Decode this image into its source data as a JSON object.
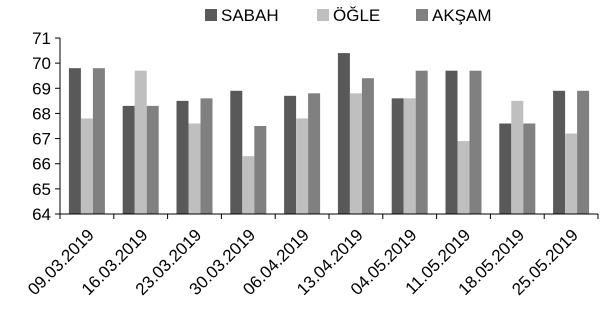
{
  "chart_data": {
    "type": "bar",
    "categories": [
      "09.03.2019",
      "16.03.2019",
      "23.03.2019",
      "30.03.2019",
      "06.04.2019",
      "13.04.2019",
      "04.05.2019",
      "11.05.2019",
      "18.05.2019",
      "25.05.2019"
    ],
    "series": [
      {
        "name": "SABAH",
        "color": "#595959",
        "values": [
          69.8,
          68.3,
          68.5,
          68.9,
          68.7,
          70.4,
          68.6,
          69.7,
          67.6,
          68.9
        ]
      },
      {
        "name": "ÖĞLE",
        "color": "#bfbfbf",
        "values": [
          67.8,
          69.7,
          67.6,
          66.3,
          67.8,
          68.8,
          68.6,
          66.9,
          68.5,
          67.2
        ]
      },
      {
        "name": "AKŞAM",
        "color": "#808080",
        "values": [
          69.8,
          68.3,
          68.6,
          67.5,
          68.8,
          69.4,
          69.7,
          69.7,
          67.6,
          68.9
        ]
      }
    ],
    "ylim": [
      64,
      71
    ],
    "yticks": [
      64,
      65,
      66,
      67,
      68,
      69,
      70,
      71
    ],
    "grid": false,
    "legend_position": "top",
    "title": "",
    "xlabel": "",
    "ylabel": ""
  }
}
